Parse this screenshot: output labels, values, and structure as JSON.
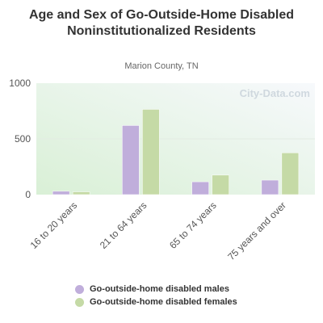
{
  "chart_data": {
    "type": "bar",
    "title": "Age and Sex of Go-Outside-Home Disabled Noninstitutionalized Residents",
    "subtitle": "Marion County, TN",
    "watermark": "City-Data.com",
    "categories": [
      "16 to 20 years",
      "21 to 64 years",
      "65 to 74 years",
      "75 years and over"
    ],
    "series": [
      {
        "name": "Go-outside-home disabled males",
        "color": "#c0aedb",
        "values": [
          30,
          620,
          115,
          130
        ]
      },
      {
        "name": "Go-outside-home disabled females",
        "color": "#c5daa6",
        "values": [
          25,
          765,
          175,
          375
        ]
      }
    ],
    "y_ticks": [
      "0",
      "500",
      "1000"
    ],
    "ylim": [
      0,
      1000
    ],
    "grid": true,
    "legend_position": "bottom"
  }
}
